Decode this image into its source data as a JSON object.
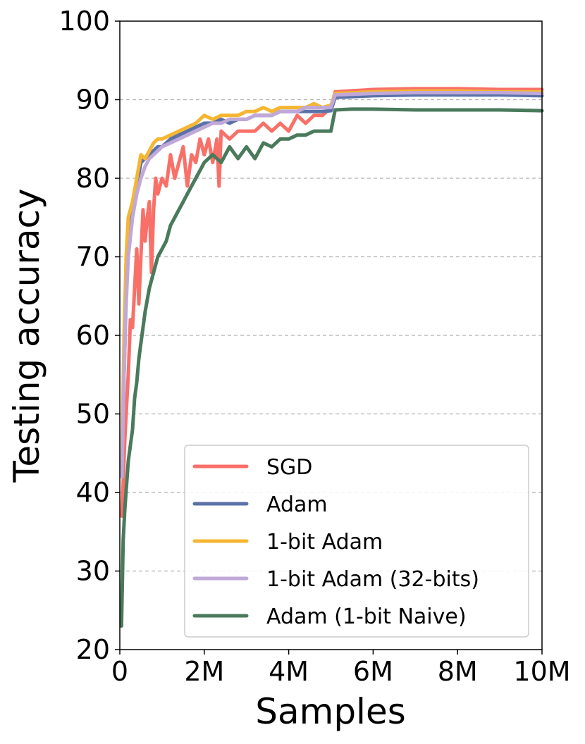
{
  "chart_data": {
    "type": "line",
    "title": "",
    "xlabel": "Samples",
    "ylabel": "Testing accuracy",
    "xlim": [
      0,
      10
    ],
    "ylim": [
      20,
      100
    ],
    "x_unit": "M samples",
    "x_ticks": [
      {
        "value": 0,
        "label": "0"
      },
      {
        "value": 2,
        "label": "2M"
      },
      {
        "value": 4,
        "label": "4M"
      },
      {
        "value": 6,
        "label": "6M"
      },
      {
        "value": 8,
        "label": "8M"
      },
      {
        "value": 10,
        "label": "10M"
      }
    ],
    "y_ticks": [
      {
        "value": 20,
        "label": "20"
      },
      {
        "value": 30,
        "label": "30"
      },
      {
        "value": 40,
        "label": "40"
      },
      {
        "value": 50,
        "label": "50"
      },
      {
        "value": 60,
        "label": "60"
      },
      {
        "value": 70,
        "label": "70"
      },
      {
        "value": 80,
        "label": "80"
      },
      {
        "value": 90,
        "label": "90"
      },
      {
        "value": 100,
        "label": "100"
      }
    ],
    "grid": {
      "axis": "y",
      "style": "dashed"
    },
    "legend_position": "bottom-right",
    "series": [
      {
        "name": "SGD",
        "color": "#f87068",
        "points": [
          [
            0.05,
            37
          ],
          [
            0.12,
            47
          ],
          [
            0.2,
            55
          ],
          [
            0.25,
            62
          ],
          [
            0.3,
            61
          ],
          [
            0.35,
            66
          ],
          [
            0.4,
            71
          ],
          [
            0.45,
            64
          ],
          [
            0.5,
            70
          ],
          [
            0.55,
            76
          ],
          [
            0.6,
            72
          ],
          [
            0.65,
            75
          ],
          [
            0.7,
            77
          ],
          [
            0.75,
            68
          ],
          [
            0.8,
            76
          ],
          [
            0.85,
            80
          ],
          [
            0.9,
            78
          ],
          [
            1.0,
            80
          ],
          [
            1.1,
            79
          ],
          [
            1.2,
            83
          ],
          [
            1.3,
            80
          ],
          [
            1.4,
            82
          ],
          [
            1.5,
            84
          ],
          [
            1.6,
            79
          ],
          [
            1.7,
            83
          ],
          [
            1.8,
            82
          ],
          [
            1.9,
            85
          ],
          [
            2.0,
            83
          ],
          [
            2.1,
            85
          ],
          [
            2.2,
            82
          ],
          [
            2.3,
            85
          ],
          [
            2.35,
            79
          ],
          [
            2.4,
            86
          ],
          [
            2.6,
            85
          ],
          [
            2.8,
            86
          ],
          [
            3.0,
            86
          ],
          [
            3.2,
            86
          ],
          [
            3.4,
            87
          ],
          [
            3.6,
            86
          ],
          [
            3.8,
            87
          ],
          [
            4.0,
            86
          ],
          [
            4.2,
            88
          ],
          [
            4.4,
            87
          ],
          [
            4.6,
            88
          ],
          [
            4.8,
            88
          ],
          [
            5.0,
            89
          ],
          [
            5.1,
            91
          ],
          [
            6.0,
            91.3
          ],
          [
            7.0,
            91.4
          ],
          [
            8.0,
            91.4
          ],
          [
            9.0,
            91.3
          ],
          [
            10.0,
            91.3
          ]
        ]
      },
      {
        "name": "Adam",
        "color": "#5a72a8",
        "points": [
          [
            0.05,
            43
          ],
          [
            0.1,
            55
          ],
          [
            0.15,
            65
          ],
          [
            0.2,
            72
          ],
          [
            0.3,
            76
          ],
          [
            0.4,
            79
          ],
          [
            0.5,
            82
          ],
          [
            0.6,
            82.5
          ],
          [
            0.7,
            83
          ],
          [
            0.8,
            83.5
          ],
          [
            0.9,
            84
          ],
          [
            1.0,
            84
          ],
          [
            1.2,
            85
          ],
          [
            1.4,
            85.5
          ],
          [
            1.6,
            86
          ],
          [
            1.8,
            86.5
          ],
          [
            2.0,
            87
          ],
          [
            2.2,
            87
          ],
          [
            2.4,
            87.5
          ],
          [
            2.6,
            87
          ],
          [
            2.8,
            87.5
          ],
          [
            3.0,
            87.5
          ],
          [
            3.2,
            88
          ],
          [
            3.4,
            88
          ],
          [
            3.6,
            88
          ],
          [
            3.8,
            88.5
          ],
          [
            4.0,
            88.5
          ],
          [
            4.2,
            88.5
          ],
          [
            4.4,
            88.5
          ],
          [
            4.6,
            88.5
          ],
          [
            4.8,
            88.5
          ],
          [
            5.0,
            88.6
          ],
          [
            5.1,
            90.3
          ],
          [
            6.0,
            90.5
          ],
          [
            7.0,
            90.6
          ],
          [
            8.0,
            90.6
          ],
          [
            9.0,
            90.6
          ],
          [
            10.0,
            90.5
          ]
        ]
      },
      {
        "name": "1-bit Adam",
        "color": "#f6b632",
        "points": [
          [
            0.05,
            44
          ],
          [
            0.1,
            60
          ],
          [
            0.15,
            70
          ],
          [
            0.2,
            75
          ],
          [
            0.3,
            77
          ],
          [
            0.4,
            80
          ],
          [
            0.5,
            83
          ],
          [
            0.6,
            82.5
          ],
          [
            0.7,
            83.5
          ],
          [
            0.8,
            84.5
          ],
          [
            0.9,
            85
          ],
          [
            1.0,
            85
          ],
          [
            1.2,
            85.5
          ],
          [
            1.4,
            86
          ],
          [
            1.6,
            86.5
          ],
          [
            1.8,
            87
          ],
          [
            2.0,
            88
          ],
          [
            2.2,
            87.5
          ],
          [
            2.4,
            88
          ],
          [
            2.6,
            88
          ],
          [
            2.8,
            88
          ],
          [
            3.0,
            88.5
          ],
          [
            3.2,
            88.5
          ],
          [
            3.4,
            89
          ],
          [
            3.6,
            88.5
          ],
          [
            3.8,
            89
          ],
          [
            4.0,
            89
          ],
          [
            4.2,
            89
          ],
          [
            4.4,
            89
          ],
          [
            4.6,
            89.5
          ],
          [
            4.8,
            89
          ],
          [
            5.0,
            89.3
          ],
          [
            5.1,
            90.8
          ],
          [
            6.0,
            91
          ],
          [
            7.0,
            91.1
          ],
          [
            8.0,
            91.1
          ],
          [
            9.0,
            91
          ],
          [
            10.0,
            91
          ]
        ]
      },
      {
        "name": "1-bit Adam (32-bits)",
        "color": "#c0a8d8",
        "points": [
          [
            0.05,
            42
          ],
          [
            0.1,
            55
          ],
          [
            0.15,
            64
          ],
          [
            0.2,
            70
          ],
          [
            0.3,
            75
          ],
          [
            0.4,
            78
          ],
          [
            0.5,
            80
          ],
          [
            0.6,
            81.5
          ],
          [
            0.7,
            82.5
          ],
          [
            0.8,
            83
          ],
          [
            0.9,
            83.5
          ],
          [
            1.0,
            84
          ],
          [
            1.2,
            84.5
          ],
          [
            1.4,
            85
          ],
          [
            1.6,
            85.5
          ],
          [
            1.8,
            86
          ],
          [
            2.0,
            86.5
          ],
          [
            2.2,
            87
          ],
          [
            2.4,
            87
          ],
          [
            2.6,
            87.5
          ],
          [
            2.8,
            87.5
          ],
          [
            3.0,
            87.5
          ],
          [
            3.2,
            88
          ],
          [
            3.4,
            88
          ],
          [
            3.6,
            88
          ],
          [
            3.8,
            88.5
          ],
          [
            4.0,
            88.5
          ],
          [
            4.2,
            88.5
          ],
          [
            4.4,
            89
          ],
          [
            4.6,
            89
          ],
          [
            4.8,
            89
          ],
          [
            5.0,
            89
          ],
          [
            5.1,
            90.6
          ],
          [
            6.0,
            90.8
          ],
          [
            7.0,
            90.9
          ],
          [
            8.0,
            90.9
          ],
          [
            9.0,
            90.9
          ],
          [
            10.0,
            90.8
          ]
        ]
      },
      {
        "name": "Adam (1-bit Naive)",
        "color": "#4a7a5c",
        "points": [
          [
            0.04,
            23
          ],
          [
            0.08,
            34
          ],
          [
            0.12,
            38
          ],
          [
            0.16,
            41
          ],
          [
            0.2,
            44
          ],
          [
            0.25,
            46
          ],
          [
            0.3,
            48
          ],
          [
            0.35,
            52
          ],
          [
            0.4,
            54
          ],
          [
            0.45,
            57
          ],
          [
            0.5,
            59
          ],
          [
            0.55,
            61
          ],
          [
            0.6,
            63
          ],
          [
            0.7,
            66
          ],
          [
            0.8,
            68
          ],
          [
            0.9,
            70
          ],
          [
            1.0,
            71
          ],
          [
            1.1,
            72
          ],
          [
            1.2,
            74
          ],
          [
            1.3,
            75
          ],
          [
            1.4,
            76
          ],
          [
            1.5,
            77
          ],
          [
            1.6,
            78
          ],
          [
            1.7,
            79
          ],
          [
            1.8,
            80
          ],
          [
            1.9,
            81
          ],
          [
            2.0,
            82
          ],
          [
            2.1,
            82.5
          ],
          [
            2.2,
            83
          ],
          [
            2.4,
            82
          ],
          [
            2.6,
            84
          ],
          [
            2.8,
            82.5
          ],
          [
            3.0,
            84
          ],
          [
            3.2,
            82.5
          ],
          [
            3.4,
            84.5
          ],
          [
            3.6,
            84
          ],
          [
            3.8,
            85
          ],
          [
            4.0,
            85
          ],
          [
            4.2,
            85.5
          ],
          [
            4.4,
            85.5
          ],
          [
            4.6,
            86
          ],
          [
            4.8,
            86
          ],
          [
            5.0,
            86
          ],
          [
            5.1,
            88.7
          ],
          [
            5.5,
            88.8
          ],
          [
            6.0,
            88.8
          ],
          [
            7.0,
            88.7
          ],
          [
            8.0,
            88.7
          ],
          [
            9.0,
            88.7
          ],
          [
            10.0,
            88.6
          ]
        ]
      }
    ]
  }
}
